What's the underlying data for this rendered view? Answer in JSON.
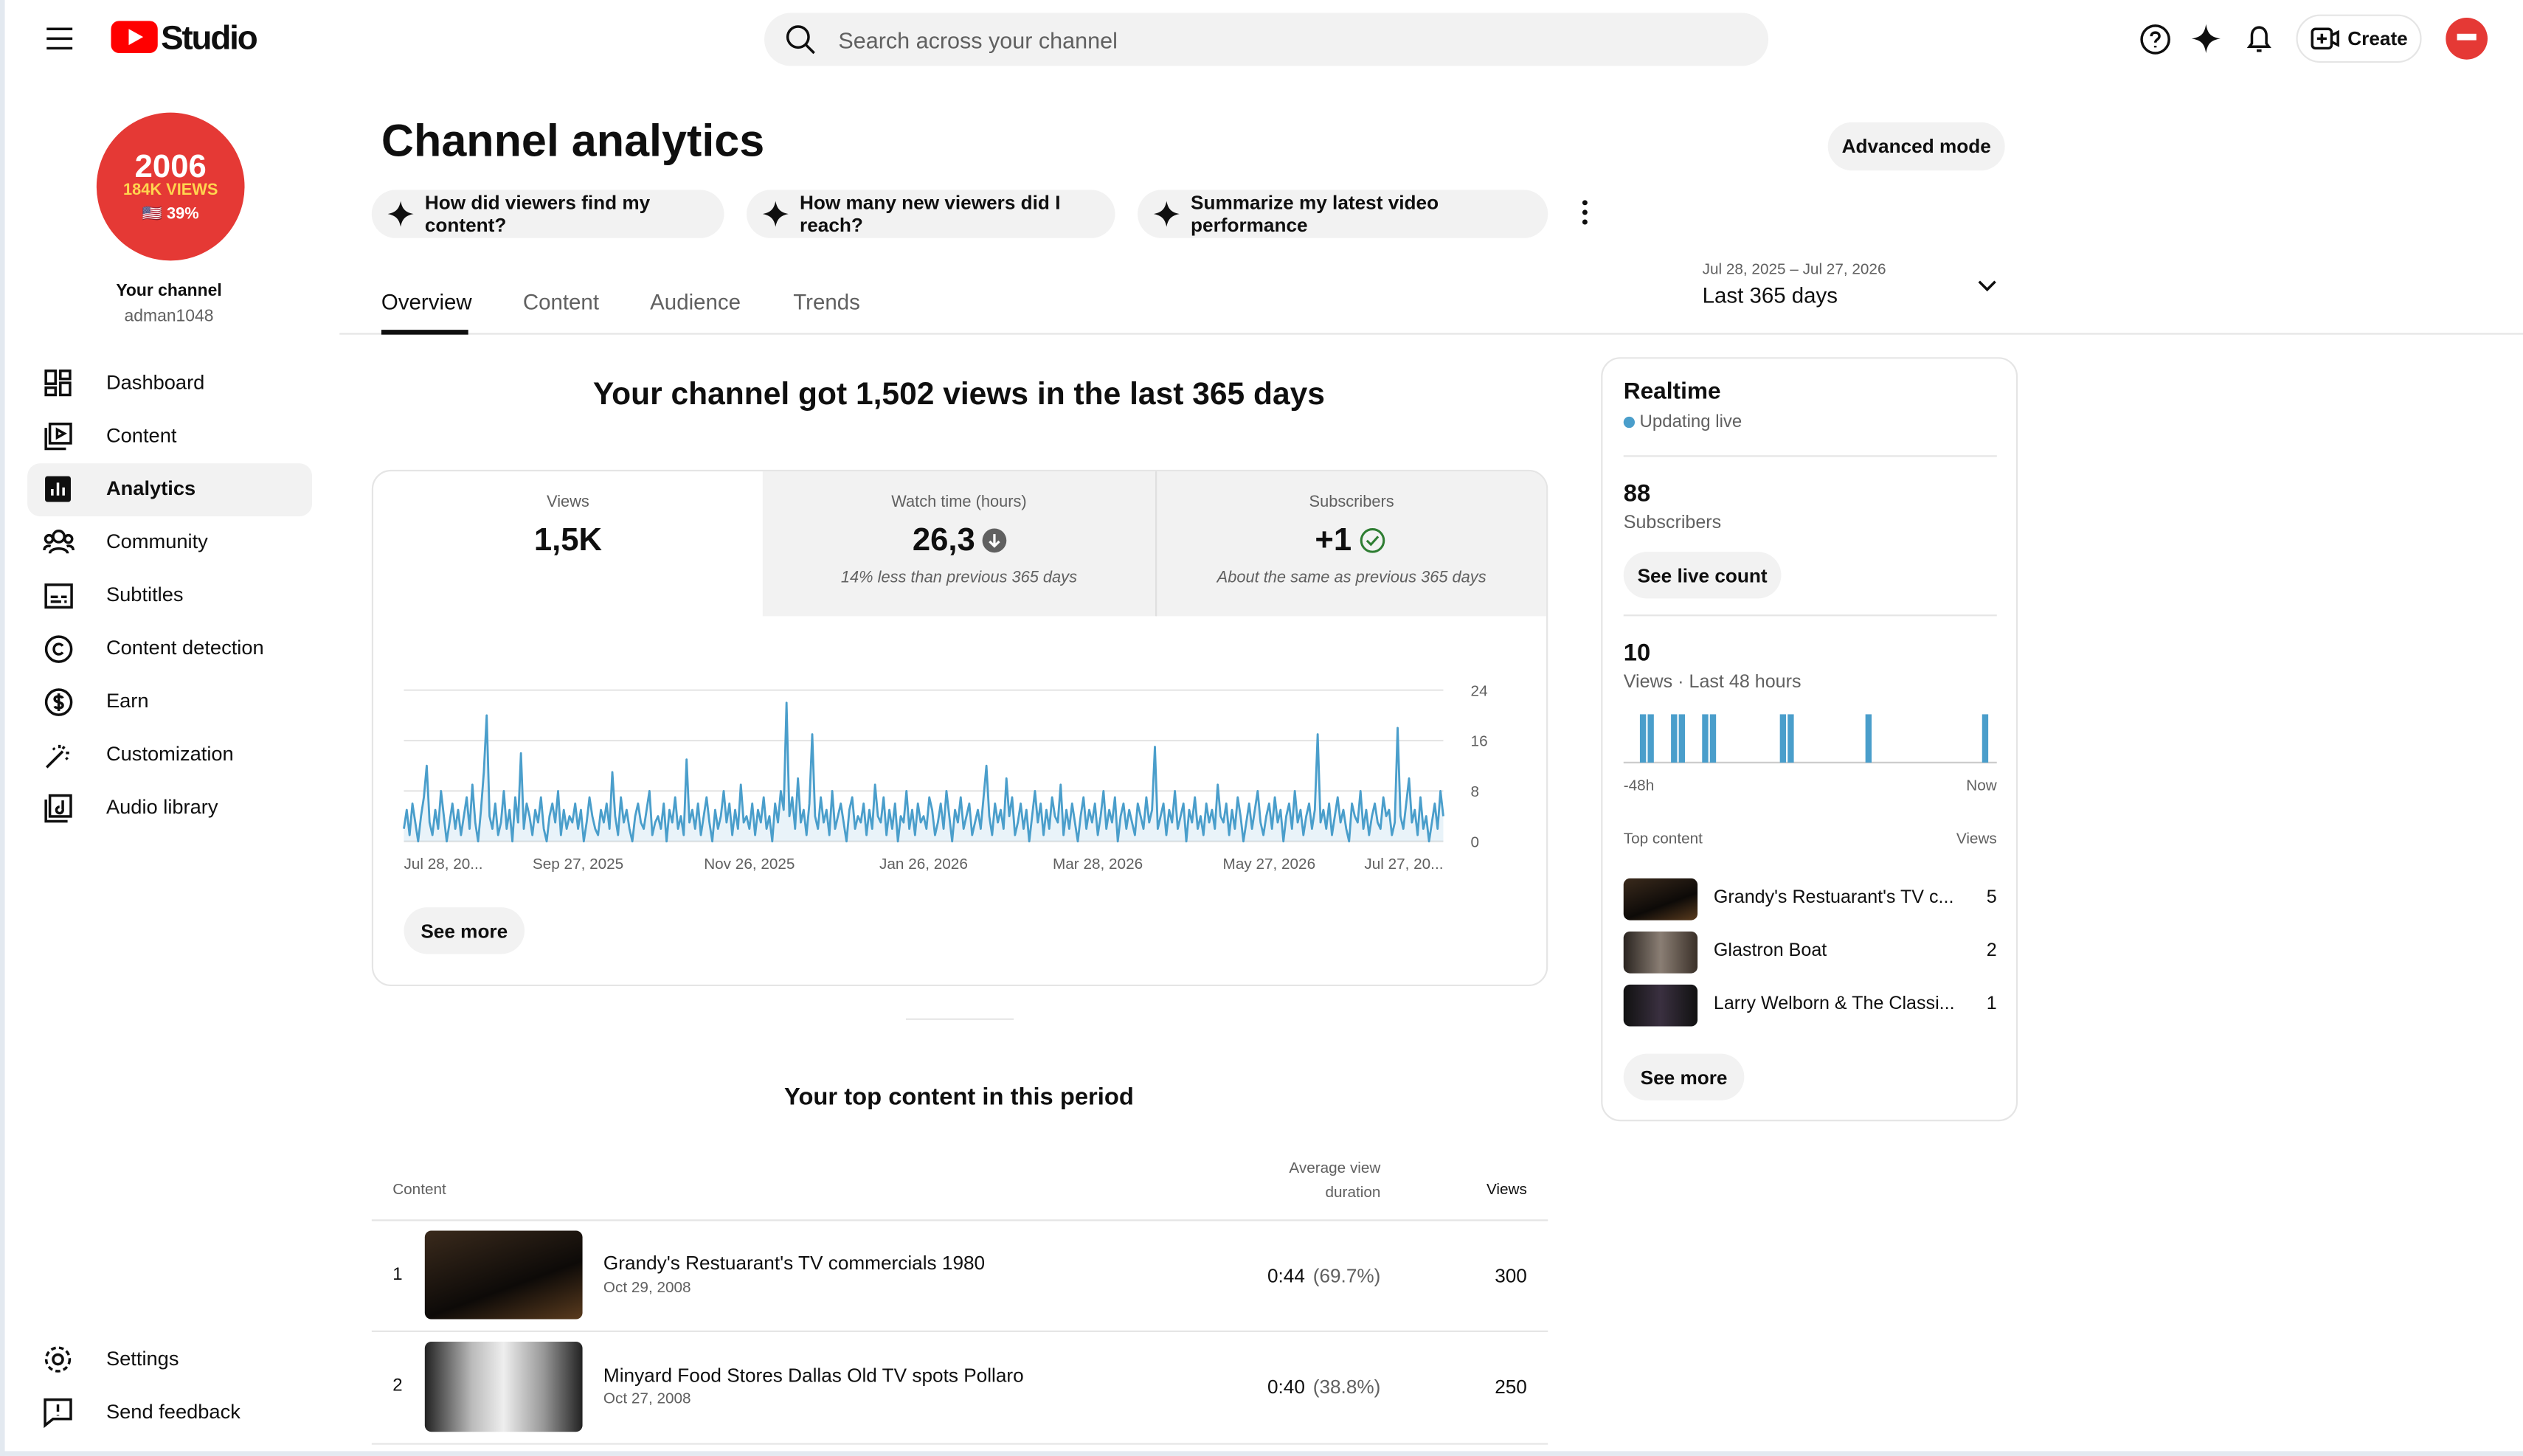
{
  "header": {
    "logo": "Studio",
    "search_placeholder": "Search across your channel",
    "create": "Create"
  },
  "sidebar": {
    "avatar": {
      "line1": "2006",
      "line2": "184K VIEWS",
      "line3": "🇺🇸 39%"
    },
    "channel_label": "Your channel",
    "handle": "adman1048",
    "nav": [
      "Dashboard",
      "Content",
      "Analytics",
      "Community",
      "Subtitles",
      "Content detection",
      "Earn",
      "Customization",
      "Audio library"
    ],
    "bottom": [
      "Settings",
      "Send feedback"
    ]
  },
  "main": {
    "title": "Channel analytics",
    "advanced": "Advanced mode",
    "prompts": [
      "How did viewers find my content?",
      "How many new viewers did I reach?",
      "Summarize my latest video performance"
    ],
    "tabs": [
      "Overview",
      "Content",
      "Audience",
      "Trends"
    ],
    "date_range": "Jul 28, 2025 – Jul 27, 2026",
    "period": "Last 365 days",
    "headline": "Your channel got 1,502 views in the last 365 days",
    "metrics": [
      {
        "label": "Views",
        "value": "1,5K"
      },
      {
        "label": "Watch time (hours)",
        "value": "26,3",
        "note": "14% less than previous 365 days"
      },
      {
        "label": "Subscribers",
        "value": "+1",
        "note": "About the same as previous 365 days"
      }
    ],
    "see_more": "See more",
    "top_title": "Your top content in this period",
    "table": {
      "headers": [
        "Content",
        "Average view duration",
        "Views"
      ],
      "rows": [
        {
          "rank": 1,
          "title": "Grandy's Restuarant's TV commercials 1980",
          "date": "Oct 29, 2008",
          "duration": "0:44",
          "percent": "(69.7%)",
          "views": 300
        },
        {
          "rank": 2,
          "title": "Minyard Food Stores Dallas Old TV spots Pollaro",
          "date": "Oct 27, 2008",
          "duration": "0:40",
          "percent": "(38.8%)",
          "views": 250
        }
      ]
    }
  },
  "realtime": {
    "title": "Realtime",
    "status": "Updating live",
    "subscribers": 88,
    "subscribers_label": "Subscribers",
    "live_count": "See live count",
    "views": 10,
    "views_label": "Views · Last 48 hours",
    "start": "-48h",
    "end": "Now",
    "top_label": "Top content",
    "views_col": "Views",
    "top": [
      {
        "title": "Grandy's Restuarant's TV c...",
        "views": 5
      },
      {
        "title": "Glastron Boat",
        "views": 2
      },
      {
        "title": "Larry Welborn & The Classi...",
        "views": 1
      }
    ],
    "see_more": "See more"
  },
  "chart_data": [
    {
      "type": "line",
      "color": "#4a9ecb",
      "grid": true,
      "xlim": [
        0,
        364
      ],
      "ylim": [
        0,
        24
      ],
      "yticks": [
        0,
        8,
        16,
        24
      ],
      "xticks": [
        {
          "value": 0,
          "label": "Jul 28, 20..."
        },
        {
          "value": 61,
          "label": "Sep 27, 2025"
        },
        {
          "value": 121,
          "label": "Nov 26, 2025"
        },
        {
          "value": 182,
          "label": "Jan 26, 2026"
        },
        {
          "value": 243,
          "label": "Mar 28, 2026"
        },
        {
          "value": 303,
          "label": "May 27, 2026"
        },
        {
          "value": 364,
          "label": "Jul 27, 20..."
        }
      ],
      "values": [
        2,
        5,
        1,
        6,
        3,
        0,
        4,
        7,
        12,
        3,
        1,
        5,
        2,
        8,
        4,
        0,
        3,
        6,
        2,
        5,
        1,
        4,
        7,
        2,
        9,
        3,
        0,
        5,
        11,
        20,
        4,
        2,
        6,
        1,
        3,
        8,
        2,
        5,
        0,
        7,
        3,
        14,
        2,
        6,
        4,
        1,
        5,
        3,
        7,
        2,
        0,
        4,
        6,
        3,
        8,
        1,
        5,
        2,
        4,
        3,
        6,
        2,
        5,
        0,
        3,
        7,
        4,
        2,
        1,
        5,
        3,
        6,
        2,
        11,
        4,
        1,
        7,
        3,
        5,
        2,
        0,
        4,
        6,
        3,
        2,
        5,
        8,
        1,
        3,
        4,
        2,
        6,
        0,
        5,
        3,
        7,
        2,
        4,
        1,
        13,
        3,
        5,
        2,
        6,
        1,
        4,
        7,
        3,
        0,
        5,
        2,
        4,
        8,
        3,
        6,
        1,
        5,
        2,
        9,
        3,
        4,
        2,
        6,
        1,
        5,
        3,
        7,
        2,
        4,
        0,
        6,
        3,
        8,
        5,
        22,
        4,
        7,
        2,
        10,
        3,
        5,
        1,
        6,
        17,
        4,
        2,
        7,
        3,
        5,
        1,
        8,
        2,
        4,
        6,
        3,
        0,
        5,
        7,
        2,
        4,
        3,
        6,
        1,
        5,
        2,
        9,
        4,
        3,
        7,
        1,
        5,
        2,
        6,
        0,
        4,
        3,
        8,
        2,
        5,
        1,
        6,
        3,
        4,
        2,
        7,
        5,
        1,
        3,
        6,
        2,
        8,
        4,
        0,
        5,
        3,
        7,
        2,
        4,
        6,
        1,
        3,
        5,
        2,
        7,
        12,
        4,
        1,
        6,
        3,
        5,
        2,
        10,
        4,
        7,
        1,
        3,
        6,
        2,
        5,
        0,
        4,
        8,
        3,
        6,
        1,
        5,
        2,
        7,
        4,
        3,
        9,
        1,
        5,
        2,
        6,
        3,
        0,
        4,
        7,
        2,
        5,
        3,
        6,
        1,
        4,
        8,
        2,
        5,
        3,
        7,
        0,
        4,
        6,
        2,
        5,
        3,
        1,
        6,
        4,
        2,
        7,
        3,
        5,
        15,
        2,
        4,
        6,
        1,
        5,
        3,
        8,
        2,
        4,
        6,
        0,
        5,
        3,
        7,
        2,
        4,
        1,
        6,
        3,
        5,
        2,
        9,
        4,
        3,
        6,
        1,
        5,
        2,
        7,
        4,
        0,
        3,
        6,
        2,
        5,
        8,
        3,
        1,
        4,
        6,
        2,
        7,
        3,
        5,
        0,
        4,
        6,
        2,
        8,
        3,
        5,
        1,
        4,
        6,
        2,
        5,
        17,
        3,
        5,
        2,
        6,
        1,
        4,
        7,
        3,
        5,
        2,
        0,
        6,
        4,
        3,
        8,
        2,
        5,
        1,
        4,
        6,
        3,
        2,
        7,
        4,
        5,
        1,
        3,
        18,
        4,
        2,
        6,
        10,
        3,
        5,
        1,
        7,
        2,
        4,
        0,
        3,
        6,
        2,
        8,
        4
      ]
    },
    {
      "type": "bar",
      "color": "#4a9ecb",
      "ylim": [
        0,
        1
      ],
      "values": [
        0,
        0,
        1,
        1,
        0,
        0,
        1,
        1,
        0,
        0,
        1,
        1,
        0,
        0,
        0,
        0,
        0,
        0,
        0,
        0,
        1,
        1,
        0,
        0,
        0,
        0,
        0,
        0,
        0,
        0,
        0,
        1,
        0,
        0,
        0,
        0,
        0,
        0,
        0,
        0,
        0,
        0,
        0,
        0,
        0,
        0,
        1,
        0
      ]
    }
  ]
}
